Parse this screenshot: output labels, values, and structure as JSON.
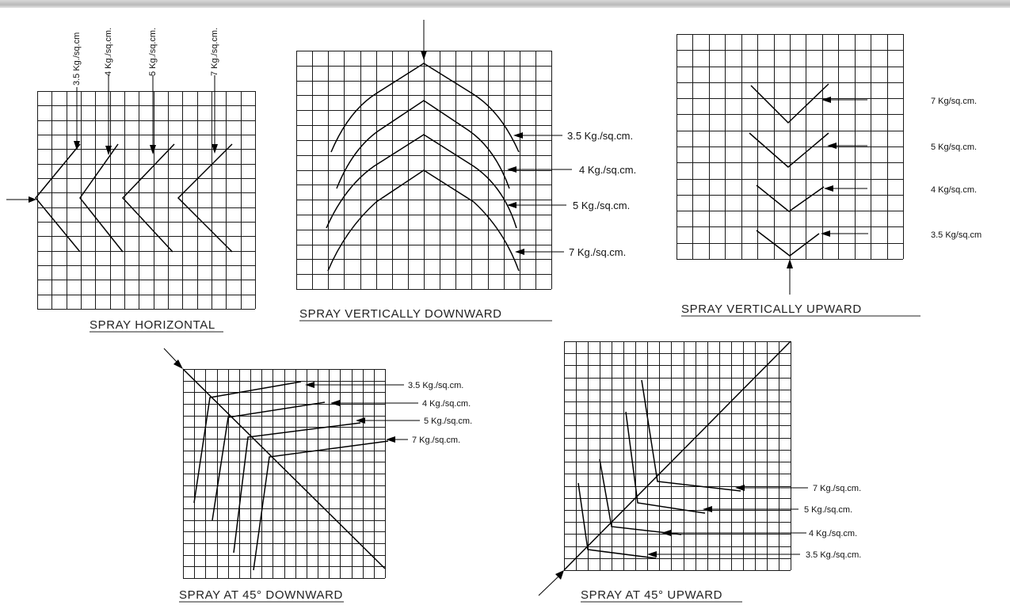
{
  "spray_horizontal": {
    "title": "SPRAY HORIZONTAL",
    "labels": [
      "3.5 Kg./sq.cm",
      "4 Kg./sq.cm.",
      "5 Kg./sq.cm.",
      "7 Kg./sq.cm."
    ]
  },
  "spray_vertically_downward": {
    "title": "SPRAY VERTICALLY DOWNWARD",
    "labels": [
      "3.5 Kg./sq.cm.",
      "4 Kg./sq.cm.",
      "5 Kg./sq.cm.",
      "7 Kg./sq.cm."
    ]
  },
  "spray_vertically_upward": {
    "title": "SPRAY VERTICALLY UPWARD",
    "labels": [
      "7 Kg/sq.cm.",
      "5 Kg/sq.cm.",
      "4 Kg/sq.cm.",
      "3.5 Kg/sq.cm"
    ]
  },
  "spray_45_downward": {
    "title": "SPRAY AT 45° DOWNWARD",
    "labels": [
      "3.5 Kg./sq.cm.",
      "4 Kg./sq.cm.",
      "5 Kg./sq.cm.",
      "7 Kg./sq.cm."
    ]
  },
  "spray_45_upward": {
    "title": "SPRAY AT 45° UPWARD",
    "labels": [
      "7 Kg./sq.cm.",
      "5 Kg./sq.cm.",
      "4 Kg./sq.cm.",
      "3.5 Kg./sq.cm."
    ]
  }
}
